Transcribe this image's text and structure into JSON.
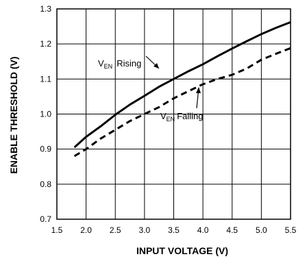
{
  "chart_data": {
    "type": "line",
    "xlabel": "INPUT VOLTAGE (V)",
    "ylabel": "ENABLE THRESHOLD (V)",
    "xlim": [
      1.5,
      5.5
    ],
    "ylim": [
      0.7,
      1.3
    ],
    "xticks": [
      "1.5",
      "2.0",
      "2.5",
      "3.0",
      "3.5",
      "4.0",
      "4.5",
      "5.0",
      "5.5"
    ],
    "yticks": [
      "0.7",
      "0.8",
      "0.9",
      "1.0",
      "1.1",
      "1.2",
      "1.3"
    ],
    "grid": true,
    "series": [
      {
        "name_main": "V",
        "name_sub": "EN",
        "name_rest": "Rising",
        "style": "solid",
        "x": [
          1.8,
          2.0,
          2.25,
          2.5,
          2.75,
          3.0,
          3.25,
          3.5,
          3.75,
          4.0,
          4.25,
          4.5,
          4.75,
          5.0,
          5.25,
          5.5
        ],
        "y": [
          0.905,
          0.935,
          0.965,
          0.998,
          1.027,
          1.052,
          1.078,
          1.1,
          1.122,
          1.142,
          1.165,
          1.187,
          1.208,
          1.228,
          1.246,
          1.262
        ]
      },
      {
        "name_main": "V",
        "name_sub": "EN",
        "name_rest": "Falling",
        "style": "dashed",
        "x": [
          1.8,
          2.0,
          2.25,
          2.5,
          2.75,
          3.0,
          3.25,
          3.5,
          3.75,
          4.0,
          4.25,
          4.5,
          4.75,
          5.0,
          5.25,
          5.5
        ],
        "y": [
          0.88,
          0.9,
          0.93,
          0.955,
          0.98,
          1.0,
          1.02,
          1.045,
          1.065,
          1.085,
          1.1,
          1.112,
          1.13,
          1.155,
          1.172,
          1.188
        ]
      }
    ]
  }
}
